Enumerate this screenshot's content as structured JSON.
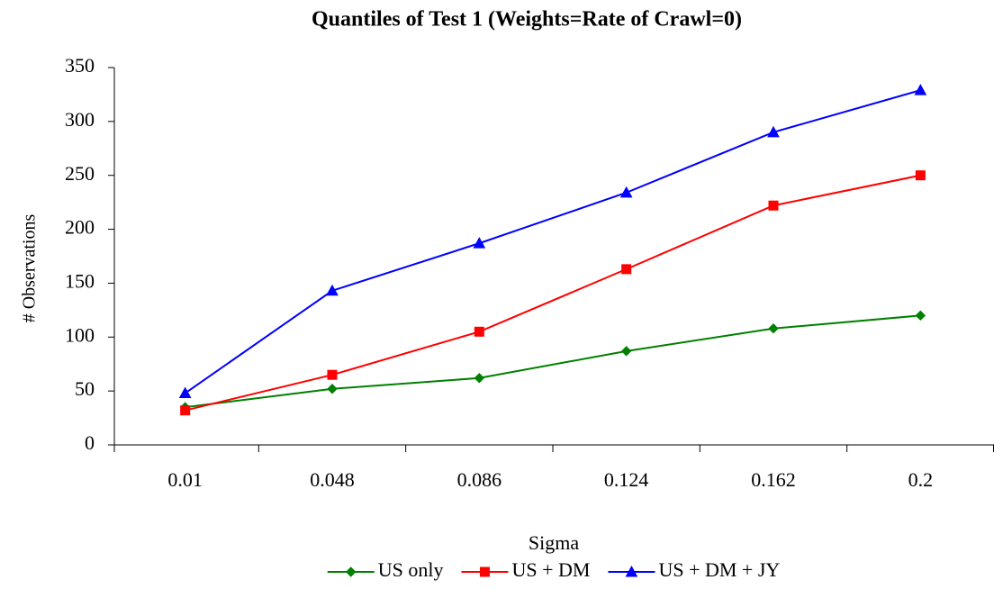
{
  "chart_data": {
    "type": "line",
    "title": "Quantiles of Test 1 (Weights=Rate of Crawl=0)",
    "x_label": "Sigma",
    "y_label": "# Observations",
    "categories": [
      "0.01",
      "0.048",
      "0.086",
      "0.124",
      "0.162",
      "0.2"
    ],
    "series": [
      {
        "name": "US only",
        "color": "#008000",
        "marker": "diamond",
        "values": [
          35,
          52,
          62,
          87,
          108,
          120
        ]
      },
      {
        "name": "US + DM",
        "color": "#ff0000",
        "marker": "square",
        "values": [
          32,
          65,
          105,
          163,
          222,
          250
        ]
      },
      {
        "name": "US + DM + JY",
        "color": "#0000ff",
        "marker": "triangle",
        "values": [
          48,
          143,
          187,
          234,
          290,
          329
        ]
      }
    ],
    "ylim": [
      0,
      350
    ],
    "yticks": [
      0,
      50,
      100,
      150,
      200,
      250,
      300,
      350
    ],
    "grid": false,
    "legend": "bottom"
  }
}
